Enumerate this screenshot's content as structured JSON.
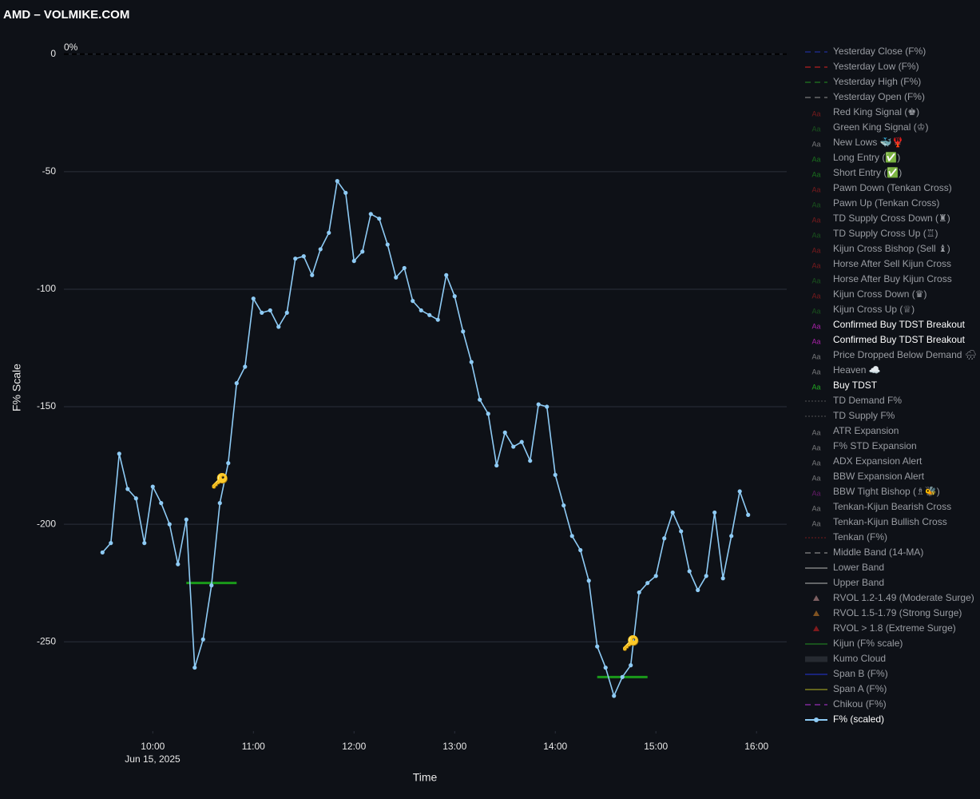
{
  "chart_data": {
    "type": "line",
    "title": "AMD – VOLMIKE.COM",
    "y_label": "F% Scale",
    "x_label": "Time",
    "x_date_label": "Jun 15, 2025",
    "ylim": [
      -288,
      4
    ],
    "yticks": [
      0,
      -50,
      -100,
      -150,
      -200,
      -250
    ],
    "xlim": [
      "2025-06-15 09:07",
      "2025-06-15 16:18"
    ],
    "xticks": [
      {
        "value": "2025-06-15 10:00",
        "label": "10:00"
      },
      {
        "value": "2025-06-15 11:00",
        "label": "11:00"
      },
      {
        "value": "2025-06-15 12:00",
        "label": "12:00"
      },
      {
        "value": "2025-06-15 13:00",
        "label": "13:00"
      },
      {
        "value": "2025-06-15 14:00",
        "label": "14:00"
      },
      {
        "value": "2025-06-15 15:00",
        "label": "15:00"
      },
      {
        "value": "2025-06-15 16:00",
        "label": "16:00"
      }
    ],
    "grid": true,
    "zero_line": {
      "y": 0,
      "label": "0%"
    },
    "x": [
      "2025-06-15 09:30",
      "2025-06-15 09:35",
      "2025-06-15 09:40",
      "2025-06-15 09:45",
      "2025-06-15 09:50",
      "2025-06-15 09:55",
      "2025-06-15 10:00",
      "2025-06-15 10:05",
      "2025-06-15 10:10",
      "2025-06-15 10:15",
      "2025-06-15 10:20",
      "2025-06-15 10:25",
      "2025-06-15 10:30",
      "2025-06-15 10:35",
      "2025-06-15 10:40",
      "2025-06-15 10:45",
      "2025-06-15 10:50",
      "2025-06-15 10:55",
      "2025-06-15 11:00",
      "2025-06-15 11:05",
      "2025-06-15 11:10",
      "2025-06-15 11:15",
      "2025-06-15 11:20",
      "2025-06-15 11:25",
      "2025-06-15 11:30",
      "2025-06-15 11:35",
      "2025-06-15 11:40",
      "2025-06-15 11:45",
      "2025-06-15 11:50",
      "2025-06-15 11:55",
      "2025-06-15 12:00",
      "2025-06-15 12:05",
      "2025-06-15 12:10",
      "2025-06-15 12:15",
      "2025-06-15 12:20",
      "2025-06-15 12:25",
      "2025-06-15 12:30",
      "2025-06-15 12:35",
      "2025-06-15 12:40",
      "2025-06-15 12:45",
      "2025-06-15 12:50",
      "2025-06-15 12:55",
      "2025-06-15 13:00",
      "2025-06-15 13:05",
      "2025-06-15 13:10",
      "2025-06-15 13:15",
      "2025-06-15 13:20",
      "2025-06-15 13:25",
      "2025-06-15 13:30",
      "2025-06-15 13:35",
      "2025-06-15 13:40",
      "2025-06-15 13:45",
      "2025-06-15 13:50",
      "2025-06-15 13:55",
      "2025-06-15 14:00",
      "2025-06-15 14:05",
      "2025-06-15 14:10",
      "2025-06-15 14:15",
      "2025-06-15 14:20",
      "2025-06-15 14:25",
      "2025-06-15 14:30",
      "2025-06-15 14:35",
      "2025-06-15 14:40",
      "2025-06-15 14:45",
      "2025-06-15 14:50",
      "2025-06-15 14:55",
      "2025-06-15 15:00",
      "2025-06-15 15:05",
      "2025-06-15 15:10",
      "2025-06-15 15:15",
      "2025-06-15 15:20",
      "2025-06-15 15:25",
      "2025-06-15 15:30",
      "2025-06-15 15:35",
      "2025-06-15 15:40",
      "2025-06-15 15:45",
      "2025-06-15 15:50",
      "2025-06-15 15:55"
    ],
    "series": [
      {
        "name": "F% (scaled)",
        "color": "#8ecbf5",
        "values": [
          -212,
          -208,
          -170,
          -185,
          -189,
          -208,
          -184,
          -191,
          -200,
          -217,
          -198,
          -261,
          -249,
          -226,
          -191,
          -174,
          -140,
          -133,
          -104,
          -110,
          -109,
          -116,
          -110,
          -87,
          -86,
          -94,
          -83,
          -76,
          -54,
          -59,
          -88,
          -84,
          -68,
          -70,
          -81,
          -95,
          -91,
          -105,
          -109,
          -111,
          -113,
          -94,
          -103,
          -118,
          -131,
          -147,
          -153,
          -175,
          -161,
          -167,
          -165,
          -173,
          -149,
          -150,
          -179,
          -192,
          -205,
          -211,
          -224,
          -252,
          -261,
          -273,
          -265,
          -260,
          -229,
          -225,
          -222,
          -206,
          -195,
          -203,
          -220,
          -228,
          -222,
          -195,
          -223,
          -205,
          -186,
          -196
        ]
      }
    ],
    "shapes": [
      {
        "x0": "2025-06-15 10:20",
        "x1": "2025-06-15 10:50",
        "y": -225,
        "color": "#1a9a1a"
      },
      {
        "x0": "2025-06-15 14:25",
        "x1": "2025-06-15 14:55",
        "y": -265,
        "color": "#1a9a1a"
      }
    ],
    "annotations": [
      {
        "x": "2025-06-15 10:40",
        "y": -182,
        "text": "🔑"
      },
      {
        "x": "2025-06-15 14:45",
        "y": -251,
        "text": "🔑"
      }
    ],
    "legend": [
      {
        "name": "Yesterday Close (F%)",
        "color": "#2233aa",
        "symbol": "dash"
      },
      {
        "name": "Yesterday Low (F%)",
        "color": "#cc2222",
        "symbol": "dash"
      },
      {
        "name": "Yesterday High (F%)",
        "color": "#228822",
        "symbol": "dash"
      },
      {
        "name": "Yesterday Open (F%)",
        "color": "#888888",
        "symbol": "dash"
      },
      {
        "name": "Red King Signal (♚)",
        "color": "#cc2222",
        "symbol": "Aa"
      },
      {
        "name": "Green King Signal (♔)",
        "color": "#228822",
        "symbol": "Aa"
      },
      {
        "name": "New Lows 🐳🦞",
        "color": "#cccccc",
        "symbol": "Aa"
      },
      {
        "name": "Long Entry (✅)",
        "color": "#22bb22",
        "symbol": "Aa"
      },
      {
        "name": "Short Entry (✅)",
        "color": "#22bb22",
        "symbol": "Aa"
      },
      {
        "name": "Pawn Down (Tenkan Cross)",
        "color": "#cc2222",
        "symbol": "Aa"
      },
      {
        "name": "Pawn Up (Tenkan Cross)",
        "color": "#228822",
        "symbol": "Aa"
      },
      {
        "name": "TD Supply Cross Down (♜)",
        "color": "#cc2222",
        "symbol": "Aa"
      },
      {
        "name": "TD Supply Cross Up (♖)",
        "color": "#228822",
        "symbol": "Aa"
      },
      {
        "name": "Kijun Cross Bishop (Sell ♝)",
        "color": "#cc2222",
        "symbol": "Aa"
      },
      {
        "name": "Horse After Sell Kijun Cross",
        "color": "#cc2222",
        "symbol": "Aa"
      },
      {
        "name": "Horse After Buy Kijun Cross",
        "color": "#228822",
        "symbol": "Aa"
      },
      {
        "name": "Kijun Cross Down (♛)",
        "color": "#cc2222",
        "symbol": "Aa"
      },
      {
        "name": "Kijun Cross Up (♕)",
        "color": "#228822",
        "symbol": "Aa"
      },
      {
        "name": "Confirmed Buy TDST Breakout",
        "color": "#aa22aa",
        "symbol": "Aa",
        "active": true
      },
      {
        "name": "Confirmed Buy TDST Breakout",
        "color": "#aa22aa",
        "symbol": "Aa",
        "active": true
      },
      {
        "name": "Price Dropped Below Demand 🌧",
        "color": "#cccccc",
        "symbol": "Aa"
      },
      {
        "name": "Heaven ☁️",
        "color": "#cccccc",
        "symbol": "Aa"
      },
      {
        "name": "Buy TDST",
        "color": "#22aa22",
        "symbol": "Aa",
        "active": true
      },
      {
        "name": "TD Demand F%",
        "color": "#888888",
        "symbol": "dot"
      },
      {
        "name": "TD Supply F%",
        "color": "#888888",
        "symbol": "dot"
      },
      {
        "name": "ATR Expansion",
        "color": "#cccccc",
        "symbol": "Aa"
      },
      {
        "name": "F% STD Expansion",
        "color": "#cccccc",
        "symbol": "Aa"
      },
      {
        "name": "ADX Expansion Alert",
        "color": "#cccccc",
        "symbol": "Aa"
      },
      {
        "name": "BBW Expansion Alert",
        "color": "#cccccc",
        "symbol": "Aa"
      },
      {
        "name": "BBW Tight Bishop (♗🐝)",
        "color": "#aa22aa",
        "symbol": "Aa"
      },
      {
        "name": "Tenkan-Kijun Bearish Cross",
        "color": "#cccccc",
        "symbol": "Aa"
      },
      {
        "name": "Tenkan-Kijun Bullish Cross",
        "color": "#cccccc",
        "symbol": "Aa"
      },
      {
        "name": "Tenkan (F%)",
        "color": "#cc2222",
        "symbol": "dot"
      },
      {
        "name": "Middle Band (14-MA)",
        "color": "#999999",
        "symbol": "dash"
      },
      {
        "name": "Lower Band",
        "color": "#aaaaaa",
        "symbol": "solid"
      },
      {
        "name": "Upper Band",
        "color": "#aaaaaa",
        "symbol": "solid"
      },
      {
        "name": "RVOL 1.2-1.49 (Moderate Surge)",
        "color": "#d8a0a0",
        "symbol": "triangle"
      },
      {
        "name": "RVOL 1.5-1.79 (Strong Surge)",
        "color": "#e08a2a",
        "symbol": "triangle"
      },
      {
        "name": "RVOL > 1.8 (Extreme Surge)",
        "color": "#dd2222",
        "symbol": "triangle"
      },
      {
        "name": "Kijun (F% scale)",
        "color": "#228822",
        "symbol": "solid"
      },
      {
        "name": "Kumo Cloud",
        "color": "#3a3f48",
        "symbol": "thick"
      },
      {
        "name": "Span B (F%)",
        "color": "#2233cc",
        "symbol": "solid"
      },
      {
        "name": "Span A (F%)",
        "color": "#aaaa22",
        "symbol": "solid"
      },
      {
        "name": "Chikou (F%)",
        "color": "#aa33cc",
        "symbol": "dash"
      }
    ]
  }
}
